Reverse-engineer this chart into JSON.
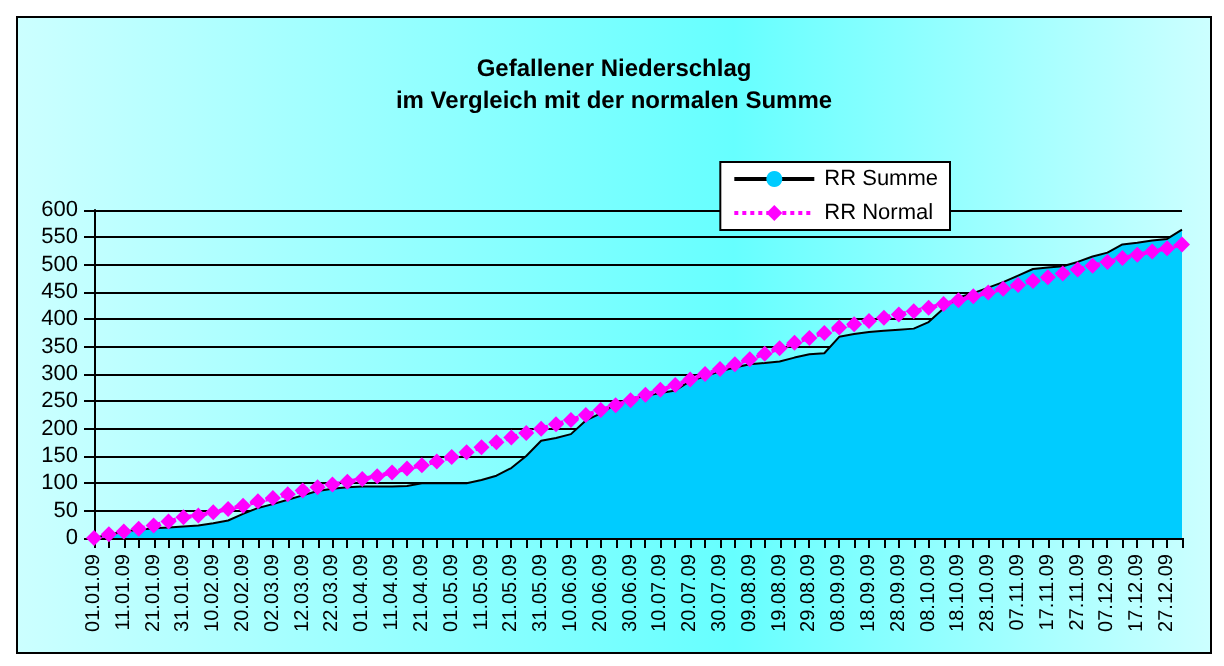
{
  "chart_data": {
    "type": "area",
    "title": "Gefallener Niederschlag\nim Vergleich mit der normalen Summe",
    "categories": [
      "01.01.09",
      null,
      "11.01.09",
      null,
      "21.01.09",
      null,
      "31.01.09",
      null,
      "10.02.09",
      null,
      "20.02.09",
      null,
      "02.03.09",
      null,
      "12.03.09",
      null,
      "22.03.09",
      null,
      "01.04.09",
      null,
      "11.04.09",
      null,
      "21.04.09",
      null,
      "01.05.09",
      null,
      "11.05.09",
      null,
      "21.05.09",
      null,
      "31.05.09",
      null,
      "10.06.09",
      null,
      "20.06.09",
      null,
      "30.06.09",
      null,
      "10.07.09",
      null,
      "20.07.09",
      null,
      "30.07.09",
      null,
      "09.08.09",
      null,
      "19.08.09",
      null,
      "29.08.09",
      null,
      "08.09.09",
      null,
      "18.09.09",
      null,
      "28.09.09",
      null,
      "08.10.09",
      null,
      "18.10.09",
      null,
      "28.10.09",
      null,
      "07.11.09",
      null,
      "17.11.09",
      null,
      "27.11.09",
      null,
      "07.12.09",
      null,
      "17.12.09",
      null,
      "27.12.09",
      null
    ],
    "series": [
      {
        "name": "RR Summe",
        "color": "#00ccff",
        "values": [
          0,
          6,
          12,
          15,
          18,
          19,
          21,
          23,
          27,
          32,
          44,
          55,
          62,
          70,
          78,
          86,
          90,
          93,
          94,
          94,
          94,
          95,
          100,
          100,
          100,
          100,
          106,
          114,
          128,
          150,
          178,
          183,
          190,
          215,
          228,
          245,
          255,
          260,
          265,
          270,
          287,
          296,
          305,
          312,
          318,
          320,
          323,
          330,
          336,
          338,
          368,
          373,
          377,
          379,
          381,
          383,
          395,
          420,
          440,
          448,
          458,
          468,
          480,
          492,
          495,
          497,
          505,
          515,
          522,
          537,
          540,
          544,
          547,
          564
        ]
      },
      {
        "name": "RR Normal",
        "type": "line",
        "color": "#ff00ff",
        "marker": "diamond",
        "line_style": "dotted",
        "values": [
          0,
          7,
          12,
          17,
          23,
          30,
          38,
          41,
          47,
          53,
          59,
          67,
          73,
          80,
          87,
          93,
          98,
          103,
          108,
          113,
          120,
          127,
          133,
          140,
          148,
          157,
          166,
          175,
          184,
          192,
          200,
          208,
          216,
          225,
          234,
          243,
          252,
          262,
          271,
          280,
          290,
          300,
          309,
          318,
          327,
          337,
          347,
          357,
          366,
          375,
          385,
          391,
          397,
          403,
          409,
          415,
          421,
          428,
          435,
          442,
          449,
          456,
          463,
          470,
          477,
          484,
          491,
          498,
          505,
          512,
          518,
          524,
          530,
          537
        ]
      }
    ],
    "ylim": [
      0,
      600
    ],
    "yticks": [
      0,
      50,
      100,
      150,
      200,
      250,
      300,
      350,
      400,
      450,
      500,
      550,
      600
    ],
    "grid": "y",
    "legend": "top right"
  }
}
